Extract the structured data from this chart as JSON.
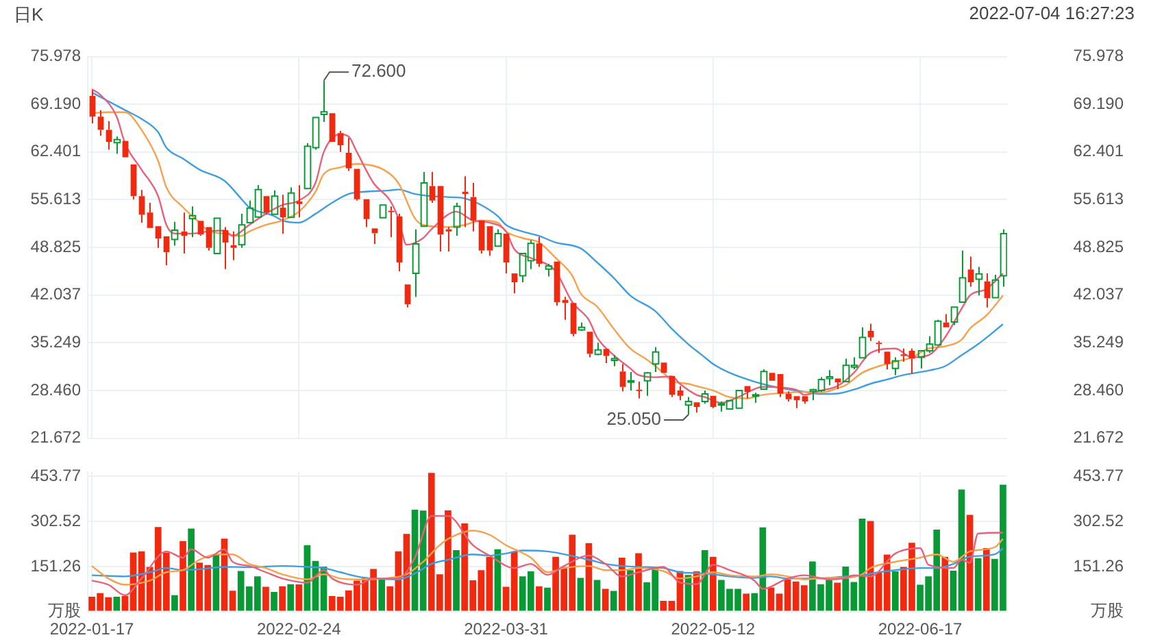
{
  "chart_data": [
    {
      "type": "candlestick",
      "title": "日K",
      "annotations": [
        "2022-07-04 16:27:23",
        "72.600",
        "25.050"
      ],
      "categories": [
        "2022-01-17",
        null,
        null,
        null,
        null,
        null,
        null,
        null,
        null,
        null,
        null,
        null,
        null,
        null,
        null,
        null,
        null,
        null,
        null,
        null,
        null,
        null,
        null,
        null,
        null,
        "2022-02-24",
        null,
        null,
        null,
        null,
        null,
        null,
        null,
        null,
        null,
        null,
        null,
        null,
        null,
        null,
        null,
        null,
        null,
        null,
        null,
        null,
        null,
        null,
        null,
        null,
        "2022-03-31",
        null,
        null,
        null,
        null,
        null,
        null,
        null,
        null,
        null,
        null,
        null,
        null,
        null,
        null,
        null,
        null,
        null,
        null,
        null,
        null,
        null,
        null,
        null,
        null,
        "2022-05-12",
        null,
        null,
        null,
        null,
        null,
        null,
        null,
        null,
        null,
        null,
        null,
        null,
        null,
        null,
        null,
        null,
        null,
        null,
        null,
        null,
        null,
        null,
        null,
        null,
        "2022-06-17",
        null,
        null,
        null,
        null,
        null,
        null,
        null,
        null,
        null,
        null
      ],
      "ohlc": [
        [
          70.38,
          71.2,
          66.49,
          67.43
        ],
        [
          67.43,
          68.37,
          64.73,
          65.55
        ],
        [
          65.55,
          66.8,
          62.72,
          63.85
        ],
        [
          63.72,
          64.6,
          62.15,
          64.16
        ],
        [
          63.97,
          63.97,
          61.65,
          61.65
        ],
        [
          60.64,
          60.64,
          55.67,
          56.12
        ],
        [
          56.12,
          57.0,
          52.35,
          53.48
        ],
        [
          53.79,
          55.17,
          51.59,
          51.59
        ],
        [
          51.84,
          51.84,
          48.76,
          50.08
        ],
        [
          50.4,
          50.4,
          46.31,
          48.13
        ],
        [
          49.96,
          52.47,
          49.08,
          51.28
        ],
        [
          51.09,
          53.79,
          47.95,
          50.46
        ],
        [
          52.91,
          54.67,
          50.27,
          53.35
        ],
        [
          52.6,
          52.6,
          50.46,
          50.65
        ],
        [
          51.72,
          51.72,
          48.38,
          48.76
        ],
        [
          47.95,
          52.97,
          47.95,
          52.97
        ],
        [
          51.28,
          51.72,
          45.75,
          49.52
        ],
        [
          49.14,
          51.09,
          47.01,
          48.76
        ],
        [
          49.2,
          53.6,
          48.76,
          52.03
        ],
        [
          52.35,
          55.49,
          52.35,
          54.42
        ],
        [
          53.16,
          57.69,
          53.16,
          57.06
        ],
        [
          56.12,
          56.12,
          53.48,
          53.79
        ],
        [
          53.54,
          56.94,
          53.54,
          56.12
        ],
        [
          54.48,
          56.31,
          50.78,
          53.1
        ],
        [
          53.1,
          57.37,
          53.1,
          56.56
        ],
        [
          55.36,
          57.69,
          53.1,
          54.99
        ],
        [
          57.19,
          63.66,
          57.19,
          63.22
        ],
        [
          63.03,
          67.31,
          62.72,
          67.31
        ],
        [
          67.74,
          72.6,
          66.68,
          68.12
        ],
        [
          67.93,
          67.93,
          63.85,
          63.85
        ],
        [
          65.1,
          65.42,
          62.4,
          63.35
        ],
        [
          62.28,
          64.41,
          59.7,
          60.08
        ],
        [
          60.01,
          60.01,
          55.49,
          55.68
        ],
        [
          55.68,
          55.68,
          51.72,
          52.85
        ],
        [
          51.53,
          51.53,
          49.33,
          50.84
        ],
        [
          53.04,
          54.86,
          53.04,
          54.86
        ],
        [
          54.04,
          54.67,
          50.27,
          53.92
        ],
        [
          53.23,
          53.6,
          45.43,
          46.69
        ],
        [
          43.55,
          43.55,
          40.28,
          40.72
        ],
        [
          45.12,
          51.4,
          41.79,
          49.33
        ],
        [
          51.84,
          59.57,
          51.84,
          58.0
        ],
        [
          57.56,
          59.57,
          55.17,
          55.49
        ],
        [
          57.56,
          57.56,
          48.26,
          50.65
        ],
        [
          51.4,
          51.72,
          48.26,
          51.09
        ],
        [
          51.72,
          55.17,
          50.46,
          54.67
        ],
        [
          56.75,
          58.95,
          51.72,
          56.43
        ],
        [
          55.99,
          58.0,
          51.09,
          52.66
        ],
        [
          52.66,
          52.66,
          47.95,
          48.38
        ],
        [
          51.84,
          51.84,
          47.63,
          48.38
        ],
        [
          49.01,
          51.4,
          49.01,
          50.78
        ],
        [
          50.78,
          50.78,
          45.12,
          46.69
        ],
        [
          45.12,
          45.12,
          42.29,
          43.86
        ],
        [
          44.8,
          47.95,
          43.86,
          47.95
        ],
        [
          46.94,
          49.83,
          45.75,
          49.39
        ],
        [
          49.39,
          50.33,
          46.06,
          46.5
        ],
        [
          45.75,
          46.5,
          44.68,
          46.19
        ],
        [
          46.81,
          46.81,
          40.53,
          41.03
        ],
        [
          41.35,
          41.79,
          38.52,
          40.91
        ],
        [
          40.91,
          40.91,
          36.19,
          36.51
        ],
        [
          37.08,
          38.14,
          36.95,
          37.45
        ],
        [
          36.82,
          36.82,
          33.18,
          33.68
        ],
        [
          33.61,
          35.25,
          33.49,
          34.24
        ],
        [
          34.37,
          34.37,
          32.36,
          33.37
        ],
        [
          32.74,
          33.49,
          31.92,
          32.99
        ],
        [
          31.17,
          32.23,
          28.34,
          28.97
        ],
        [
          29.72,
          31.1,
          28.46,
          29.85
        ],
        [
          28.59,
          29.72,
          27.33,
          28.46
        ],
        [
          29.85,
          31.1,
          27.71,
          30.98
        ],
        [
          32.23,
          34.62,
          31.1,
          33.93
        ],
        [
          32.42,
          32.42,
          30.98,
          30.98
        ],
        [
          30.54,
          30.54,
          27.52,
          27.84
        ],
        [
          28.46,
          29.09,
          27.08,
          27.71
        ],
        [
          26.39,
          27.52,
          25.05,
          26.89
        ],
        [
          26.77,
          26.77,
          25.32,
          26.13
        ],
        [
          26.89,
          28.46,
          26.58,
          27.96
        ],
        [
          27.71,
          27.71,
          25.95,
          26.13
        ],
        [
          26.39,
          26.89,
          25.45,
          26.58
        ],
        [
          25.82,
          27.02,
          25.82,
          27.02
        ],
        [
          25.95,
          28.46,
          25.95,
          28.46
        ],
        [
          29.09,
          29.09,
          27.33,
          28.27
        ],
        [
          27.71,
          28.15,
          26.7,
          27.84
        ],
        [
          28.65,
          31.48,
          28.65,
          31.17
        ],
        [
          30.98,
          30.98,
          29.85,
          29.85
        ],
        [
          30.79,
          30.79,
          27.52,
          28.02
        ],
        [
          28.02,
          28.34,
          26.89,
          27.21
        ],
        [
          27.65,
          27.65,
          25.95,
          27.08
        ],
        [
          27.65,
          27.65,
          26.58,
          26.89
        ],
        [
          28.34,
          28.71,
          27.08,
          28.59
        ],
        [
          28.46,
          30.35,
          28.27,
          30.03
        ],
        [
          30.16,
          31.35,
          29.22,
          30.41
        ],
        [
          30.16,
          30.16,
          28.65,
          29.6
        ],
        [
          29.72,
          32.99,
          29.72,
          32.04
        ],
        [
          31.79,
          33.18,
          31.48,
          32.04
        ],
        [
          33.11,
          37.45,
          33.11,
          36.01
        ],
        [
          36.95,
          37.96,
          35.5,
          36.01
        ],
        [
          35.25,
          35.5,
          33.81,
          35.06
        ],
        [
          33.99,
          33.99,
          31.48,
          32.23
        ],
        [
          31.6,
          33.18,
          30.66,
          32.67
        ],
        [
          33.61,
          34.43,
          32.55,
          33.37
        ],
        [
          34.12,
          34.43,
          30.85,
          32.99
        ],
        [
          33.18,
          34.12,
          31.6,
          34.12
        ],
        [
          34.12,
          36.19,
          33.81,
          35.06
        ],
        [
          34.94,
          38.52,
          34.94,
          38.33
        ],
        [
          38.14,
          39.34,
          37.45,
          37.45
        ],
        [
          38.2,
          40.34,
          37.77,
          40.34
        ],
        [
          41.03,
          48.38,
          40.91,
          44.49
        ],
        [
          45.68,
          47.51,
          43.23,
          43.86
        ],
        [
          44.3,
          46.06,
          41.98,
          45.06
        ],
        [
          43.99,
          45.12,
          40.28,
          41.6
        ],
        [
          41.66,
          44.93,
          41.66,
          44.17
        ],
        [
          44.8,
          51.4,
          43.23,
          50.78
        ]
      ],
      "colors": [
        "#f0290f",
        "#f0290f",
        "#f0290f",
        "#0a9a35",
        "#f0290f",
        "#f0290f",
        "#f0290f",
        "#f0290f",
        "#f0290f",
        "#f0290f",
        "#0a9a35",
        "#f0290f",
        "#0a9a35",
        "#f0290f",
        "#f0290f",
        "#0a9a35",
        "#f0290f",
        "#f0290f",
        "#0a9a35",
        "#0a9a35",
        "#0a9a35",
        "#f0290f",
        "#0a9a35",
        "#f0290f",
        "#0a9a35",
        "#f0290f",
        "#0a9a35",
        "#0a9a35",
        "#0a9a35",
        "#f0290f",
        "#f0290f",
        "#f0290f",
        "#f0290f",
        "#f0290f",
        "#f0290f",
        "#0a9a35",
        "#f0290f",
        "#f0290f",
        "#f0290f",
        "#0a9a35",
        "#0a9a35",
        "#f0290f",
        "#f0290f",
        "#f0290f",
        "#0a9a35",
        "#f0290f",
        "#f0290f",
        "#f0290f",
        "#f0290f",
        "#0a9a35",
        "#f0290f",
        "#f0290f",
        "#0a9a35",
        "#0a9a35",
        "#f0290f",
        "#0a9a35",
        "#f0290f",
        "#f0290f",
        "#f0290f",
        "#0a9a35",
        "#f0290f",
        "#0a9a35",
        "#f0290f",
        "#0a9a35",
        "#f0290f",
        "#0a9a35",
        "#f0290f",
        "#0a9a35",
        "#0a9a35",
        "#f0290f",
        "#f0290f",
        "#f0290f",
        "#0a9a35",
        "#f0290f",
        "#0a9a35",
        "#f0290f",
        "#0a9a35",
        "#0a9a35",
        "#0a9a35",
        "#f0290f",
        "#0a9a35",
        "#0a9a35",
        "#f0290f",
        "#f0290f",
        "#f0290f",
        "#f0290f",
        "#f0290f",
        "#0a9a35",
        "#0a9a35",
        "#0a9a35",
        "#f0290f",
        "#0a9a35",
        "#0a9a35",
        "#0a9a35",
        "#f0290f",
        "#f0290f",
        "#f0290f",
        "#0a9a35",
        "#f0290f",
        "#f0290f",
        "#0a9a35",
        "#0a9a35",
        "#0a9a35",
        "#f0290f",
        "#0a9a35",
        "#0a9a35",
        "#f0290f",
        "#0a9a35",
        "#f0290f",
        "#0a9a35",
        "#0a9a35"
      ],
      "series": [
        {
          "type": "line",
          "color": "#e8607a",
          "values": [
            71.33,
            70.57,
            null,
            67.43,
            63.66,
            null,
            59.89,
            null,
            56.12,
            52.03,
            50.78,
            null,
            50.78,
            null,
            51.09,
            null,
            51.22,
            50.46,
            null,
            52.03,
            null,
            53.6,
            null,
            54.86,
            null,
            55.49,
            null,
            58.0,
            62.4,
            null,
            64.92,
            64.6,
            62.4,
            null,
            58.0,
            null,
            55.49,
            52.97,
            49.2,
            null,
            50.15,
            51.4,
            null,
            null,
            53.92,
            null,
            52.66,
            null,
            52.35,
            null,
            51.09,
            48.57,
            null,
            47.32,
            null,
            46.38,
            45.43,
            null,
            41.03,
            null,
            38.52,
            36.01,
            null,
            33.49,
            null,
            31.61,
            30.66,
            null,
            30.35,
            null,
            30.47,
            29.41,
            null,
            27.84,
            27.52,
            null,
            26.7,
            null,
            27.52,
            null,
            null,
            28.97,
            null,
            null,
            null,
            28.59,
            27.84,
            null,
            28.46,
            null,
            29.09,
            null,
            30.98,
            null,
            33.81,
            null,
            null,
            34.43,
            null,
            33.18,
            null,
            33.49,
            null,
            36.01,
            null,
            40.09,
            41.98,
            null,
            42.92,
            null,
            45.12
          ]
        },
        {
          "type": "line",
          "color": "#f7a24a",
          "values": [
            67.93,
            null,
            68.06,
            null,
            68.06,
            null,
            65.55,
            null,
            61.15,
            57.37,
            null,
            54.54,
            null,
            52.35,
            51.22,
            null,
            50.78,
            null,
            50.46,
            51.09,
            null,
            52.03,
            null,
            52.66,
            null,
            53.92,
            null,
            56.75,
            59.26,
            null,
            60.21,
            null,
            60.71,
            60.64,
            null,
            60.02,
            null,
            58.0,
            null,
            52.97,
            52.03,
            null,
            null,
            51.72,
            null,
            52.03,
            null,
            52.66,
            null,
            52.35,
            51.09,
            null,
            50.15,
            null,
            49.52,
            null,
            47.32,
            null,
            44.8,
            42.29,
            null,
            40.4,
            null,
            37.26,
            null,
            34.43,
            null,
            32.86,
            null,
            30.98,
            29.85,
            null,
            29.41,
            29.09,
            null,
            28.46,
            null,
            27.52,
            null,
            27.33,
            null,
            27.84,
            null,
            null,
            28.15,
            null,
            28.27,
            null,
            28.15,
            null,
            28.78,
            29.22,
            null,
            30.98,
            null,
            31.92,
            null,
            32.55,
            null,
            33.18,
            null,
            34.43,
            null,
            34.75,
            null,
            35.69,
            37.26,
            null,
            39.14,
            null,
            41.98
          ]
        },
        {
          "type": "line",
          "color": "#3f9ee0",
          "values": [
            70.88,
            null,
            69.63,
            null,
            68.37,
            null,
            67.11,
            null,
            65.23,
            63.03,
            null,
            61.46,
            null,
            59.89,
            null,
            null,
            58.32,
            null,
            55.8,
            54.54,
            null,
            null,
            53.29,
            52.66,
            null,
            52.35,
            null,
            53.6,
            null,
            55.17,
            null,
            56.43,
            null,
            56.75,
            null,
            null,
            56.94,
            57.06,
            null,
            56.43,
            null,
            56.12,
            null,
            55.99,
            null,
            55.8,
            null,
            54.86,
            null,
            53.29,
            52.03,
            null,
            51.09,
            null,
            50.46,
            null,
            49.52,
            null,
            null,
            48.7,
            null,
            46.69,
            null,
            44.49,
            null,
            41.98,
            null,
            null,
            39.78,
            null,
            37.26,
            null,
            35.06,
            null,
            33.18,
            32.23,
            null,
            30.98,
            null,
            null,
            29.72,
            null,
            29.09,
            null,
            28.65,
            null,
            28.27,
            null,
            27.96,
            null,
            28.02,
            null,
            28.59,
            null,
            29.41,
            null,
            30.03,
            null,
            30.66,
            null,
            null,
            31.29,
            null,
            31.92,
            null,
            33.49,
            null,
            35.06,
            null,
            null,
            37.89
          ]
        }
      ],
      "ylim": [
        21.672,
        75.978
      ],
      "yticks": [
        21.672,
        {
          "value": 28.46,
          "label": "28.460"
        },
        35.249,
        42.037,
        48.825,
        55.613,
        62.401,
        {
          "value": 69.19,
          "label": "69.190"
        },
        75.978
      ],
      "y2lim": [
        21.672,
        75.978
      ],
      "y2ticks": [
        21.672,
        {
          "value": 28.46,
          "label": "28.460"
        },
        35.249,
        42.037,
        48.825,
        55.613,
        62.401,
        {
          "value": 69.19,
          "label": "69.190"
        },
        75.978
      ],
      "tick_labels": "y",
      "grid": true
    },
    {
      "type": "bar",
      "categories": [
        "2022-01-17",
        null,
        null,
        null,
        null,
        null,
        null,
        null,
        null,
        null,
        null,
        null,
        null,
        null,
        null,
        null,
        null,
        null,
        null,
        null,
        null,
        null,
        null,
        null,
        null,
        "2022-02-24",
        null,
        null,
        null,
        null,
        null,
        null,
        null,
        null,
        null,
        null,
        null,
        null,
        null,
        null,
        null,
        null,
        null,
        null,
        null,
        null,
        null,
        null,
        null,
        null,
        "2022-03-31",
        null,
        null,
        null,
        null,
        null,
        null,
        null,
        null,
        null,
        null,
        null,
        null,
        null,
        null,
        null,
        null,
        null,
        null,
        null,
        null,
        null,
        null,
        null,
        null,
        "2022-05-12",
        null,
        null,
        null,
        null,
        null,
        null,
        null,
        null,
        null,
        null,
        null,
        null,
        null,
        null,
        null,
        null,
        null,
        null,
        null,
        null,
        null,
        null,
        null,
        null,
        "2022-06-17",
        null,
        null,
        null,
        null,
        null,
        null,
        null,
        null,
        null,
        null
      ],
      "series": [
        {
          "type": "bar",
          "values": [
            50,
            62,
            48,
            50,
            52,
            198,
            202,
            150,
            284,
            198,
            55,
            237,
            279,
            164,
            156,
            192,
            245,
            70,
            136,
            84,
            118,
            83,
            66,
            85,
            92,
            91,
            223,
            170,
            151,
            52,
            50,
            71,
            104,
            113,
            143,
            111,
            85,
            202,
            261,
            342,
            339,
            466,
            125,
            340,
            206,
            296,
            105,
            139,
            184,
            209,
            83,
            202,
            118,
            135,
            85,
            80,
            184,
            150,
            258,
            113,
            230,
            106,
            76,
            69,
            181,
            139,
            196,
            98,
            151,
            36,
            36,
            136,
            123,
            135,
            206,
            184,
            106,
            76,
            76,
            60,
            62,
            283,
            81,
            60,
            108,
            101,
            88,
            168,
            92,
            106,
            97,
            151,
            99,
            312,
            304,
            132,
            191,
            135,
            150,
            231,
            90,
            118,
            275,
            184,
            137,
            410,
            325,
            179,
            213,
            177,
            426
          ],
          "colors": [
            "#f0290f",
            "#f0290f",
            "#f0290f",
            "#0a9a35",
            "#f0290f",
            "#f0290f",
            "#f0290f",
            "#f0290f",
            "#f0290f",
            "#f0290f",
            "#0a9a35",
            "#f0290f",
            "#0a9a35",
            "#f0290f",
            "#f0290f",
            "#0a9a35",
            "#f0290f",
            "#f0290f",
            "#0a9a35",
            "#0a9a35",
            "#0a9a35",
            "#f0290f",
            "#0a9a35",
            "#f0290f",
            "#0a9a35",
            "#f0290f",
            "#0a9a35",
            "#0a9a35",
            "#0a9a35",
            "#f0290f",
            "#f0290f",
            "#f0290f",
            "#f0290f",
            "#f0290f",
            "#f0290f",
            "#0a9a35",
            "#f0290f",
            "#f0290f",
            "#f0290f",
            "#0a9a35",
            "#0a9a35",
            "#f0290f",
            "#f0290f",
            "#f0290f",
            "#0a9a35",
            "#f0290f",
            "#f0290f",
            "#f0290f",
            "#f0290f",
            "#0a9a35",
            "#f0290f",
            "#f0290f",
            "#0a9a35",
            "#0a9a35",
            "#f0290f",
            "#0a9a35",
            "#f0290f",
            "#f0290f",
            "#f0290f",
            "#0a9a35",
            "#f0290f",
            "#0a9a35",
            "#f0290f",
            "#0a9a35",
            "#f0290f",
            "#0a9a35",
            "#f0290f",
            "#0a9a35",
            "#0a9a35",
            "#f0290f",
            "#f0290f",
            "#f0290f",
            "#0a9a35",
            "#f0290f",
            "#0a9a35",
            "#f0290f",
            "#0a9a35",
            "#0a9a35",
            "#0a9a35",
            "#f0290f",
            "#0a9a35",
            "#0a9a35",
            "#f0290f",
            "#f0290f",
            "#f0290f",
            "#f0290f",
            "#f0290f",
            "#0a9a35",
            "#0a9a35",
            "#0a9a35",
            "#f0290f",
            "#0a9a35",
            "#0a9a35",
            "#0a9a35",
            "#f0290f",
            "#f0290f",
            "#f0290f",
            "#0a9a35",
            "#f0290f",
            "#f0290f",
            "#0a9a35",
            "#0a9a35",
            "#0a9a35",
            "#f0290f",
            "#0a9a35",
            "#0a9a35",
            "#f0290f",
            "#0a9a35",
            "#f0290f",
            "#0a9a35",
            "#0a9a35"
          ]
        },
        {
          "type": "line",
          "color": "#e8607a",
          "values": [
            104,
            null,
            90,
            null,
            55,
            null,
            111,
            null,
            null,
            202,
            null,
            181,
            209,
            null,
            181,
            null,
            209,
            167,
            null,
            153,
            null,
            132,
            null,
            111,
            null,
            null,
            97,
            null,
            139,
            111,
            null,
            null,
            90,
            null,
            111,
            null,
            null,
            111,
            null,
            181,
            null,
            321,
            null,
            321,
            null,
            null,
            223,
            null,
            188,
            null,
            null,
            146,
            null,
            160,
            null,
            123,
            null,
            153,
            null,
            null,
            188,
            null,
            160,
            null,
            118,
            null,
            132,
            null,
            null,
            150,
            null,
            97,
            null,
            92,
            null,
            157,
            null,
            139,
            null,
            null,
            104,
            76,
            null,
            null,
            111,
            null,
            122,
            null,
            null,
            108,
            null,
            113,
            122,
            null,
            118,
            null,
            null,
            195,
            null,
            null,
            213,
            157,
            null,
            null,
            146,
            174,
            164,
            262,
            null,
            null,
            265
          ]
        },
        {
          "type": "line",
          "color": "#f7a24a",
          "values": [
            153,
            null,
            111,
            null,
            90,
            null,
            null,
            104,
            null,
            132,
            null,
            139,
            null,
            174,
            null,
            192,
            null,
            192,
            null,
            160,
            null,
            146,
            null,
            125,
            null,
            null,
            108,
            null,
            125,
            null,
            111,
            null,
            108,
            null,
            null,
            null,
            113,
            null,
            125,
            null,
            167,
            null,
            223,
            244,
            null,
            null,
            272,
            null,
            258,
            null,
            223,
            null,
            null,
            181,
            null,
            132,
            null,
            146,
            null,
            null,
            153,
            null,
            139,
            null,
            139,
            null,
            146,
            null,
            null,
            136,
            null,
            111,
            null,
            118,
            null,
            132,
            null,
            122,
            null,
            null,
            118,
            null,
            125,
            null,
            118,
            null,
            108,
            null,
            null,
            113,
            null,
            113,
            null,
            125,
            146,
            null,
            null,
            167,
            null,
            null,
            181,
            null,
            192,
            null,
            167,
            null,
            202,
            null,
            null,
            216,
            244
          ]
        },
        {
          "type": "line",
          "color": "#3f9ee0",
          "values": [
            122,
            null,
            null,
            null,
            118,
            null,
            null,
            132,
            null,
            146,
            null,
            139,
            null,
            142,
            null,
            null,
            150,
            null,
            null,
            149,
            null,
            null,
            null,
            153,
            null,
            null,
            150,
            null,
            146,
            null,
            132,
            null,
            118,
            null,
            111,
            null,
            null,
            108,
            null,
            128,
            null,
            160,
            null,
            174,
            null,
            null,
            192,
            null,
            188,
            null,
            195,
            null,
            205,
            null,
            null,
            202,
            null,
            null,
            null,
            null,
            174,
            null,
            160,
            null,
            153,
            null,
            150,
            null,
            null,
            146,
            null,
            132,
            null,
            129,
            null,
            125,
            null,
            118,
            null,
            null,
            113,
            null,
            118,
            null,
            111,
            null,
            111,
            null,
            null,
            113,
            null,
            118,
            null,
            122,
            null,
            132,
            null,
            139,
            null,
            null,
            146,
            null,
            146,
            null,
            160,
            null,
            184,
            null,
            null,
            192,
            212
          ]
        }
      ],
      "ylim": [
        0,
        470
      ],
      "yticks": [
        {
          "value": 0,
          "label": "万股"
        },
        151.26,
        302.52,
        453.77
      ],
      "y2lim": [
        0,
        470
      ],
      "y2ticks": [
        {
          "value": 0,
          "label": "万股"
        },
        151.26,
        302.52,
        453.77
      ],
      "grid": true
    }
  ]
}
